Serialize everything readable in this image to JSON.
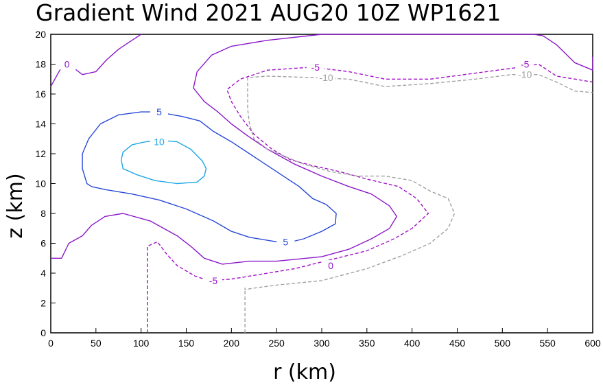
{
  "chart_data": {
    "type": "contour",
    "title": "Gradient Wind 2021 AUG20 10Z  WP1621",
    "xlabel": "r (km)",
    "ylabel": "z (km)",
    "xlim": [
      0,
      600
    ],
    "ylim": [
      0,
      20
    ],
    "x_ticks": [
      0,
      50,
      100,
      150,
      200,
      250,
      300,
      350,
      400,
      450,
      500,
      550,
      600
    ],
    "y_ticks": [
      0,
      2,
      4,
      6,
      8,
      10,
      12,
      14,
      16,
      18,
      20
    ],
    "grid": false,
    "colors": {
      "level_10": "#1ea7e6",
      "level_5": "#2848d8",
      "level_0": "#8a18c8",
      "level_neg5": "#a010c8",
      "level_neg10": "#a0a0a0"
    },
    "contours": [
      {
        "level": 10,
        "label": "10",
        "style": "solid",
        "color": "#1ea7e6",
        "label_at": [
          120,
          12.8
        ],
        "points": [
          [
            78,
            11.6
          ],
          [
            80,
            12.1
          ],
          [
            90,
            12.6
          ],
          [
            105,
            12.8
          ],
          [
            120,
            12.9
          ],
          [
            140,
            12.8
          ],
          [
            155,
            12.3
          ],
          [
            168,
            11.5
          ],
          [
            172,
            11.0
          ],
          [
            170,
            10.5
          ],
          [
            162,
            10.1
          ],
          [
            140,
            10.0
          ],
          [
            115,
            10.2
          ],
          [
            95,
            10.6
          ],
          [
            80,
            11.0
          ],
          [
            78,
            11.6
          ]
        ]
      },
      {
        "level": 5,
        "label": "5",
        "style": "solid",
        "color": "#2848d8",
        "label_at": [
          120,
          14.8
        ],
        "label2_at": [
          260,
          6.1
        ],
        "points": [
          [
            40,
            10.0
          ],
          [
            35,
            11.0
          ],
          [
            35,
            12.0
          ],
          [
            42,
            13.0
          ],
          [
            55,
            14.0
          ],
          [
            75,
            14.6
          ],
          [
            100,
            14.8
          ],
          [
            118,
            14.8
          ],
          [
            145,
            14.5
          ],
          [
            165,
            14.2
          ],
          [
            180,
            13.5
          ],
          [
            200,
            12.8
          ],
          [
            220,
            12.0
          ],
          [
            250,
            10.8
          ],
          [
            275,
            9.8
          ],
          [
            290,
            9.0
          ],
          [
            305,
            8.6
          ],
          [
            316,
            8.0
          ],
          [
            315,
            7.3
          ],
          [
            300,
            6.8
          ],
          [
            280,
            6.3
          ],
          [
            260,
            6.0
          ],
          [
            220,
            6.4
          ],
          [
            200,
            6.8
          ],
          [
            180,
            7.5
          ],
          [
            150,
            8.3
          ],
          [
            120,
            8.9
          ],
          [
            90,
            9.3
          ],
          [
            60,
            9.6
          ],
          [
            45,
            9.8
          ],
          [
            40,
            10.0
          ]
        ]
      },
      {
        "level": 0,
        "label": "0",
        "style": "solid",
        "color": "#8a18c8",
        "label_at": [
          310,
          4.5
        ],
        "points": [
          [
            0,
            5.0
          ],
          [
            12,
            5.0
          ],
          [
            20,
            6.0
          ],
          [
            35,
            6.5
          ],
          [
            45,
            7.2
          ],
          [
            60,
            7.8
          ],
          [
            80,
            8.0
          ],
          [
            110,
            7.5
          ],
          [
            140,
            6.5
          ],
          [
            155,
            5.8
          ],
          [
            170,
            5.0
          ],
          [
            190,
            4.6
          ],
          [
            220,
            4.8
          ],
          [
            250,
            4.8
          ],
          [
            300,
            5.1
          ],
          [
            330,
            5.6
          ],
          [
            355,
            6.3
          ],
          [
            375,
            7.0
          ],
          [
            383,
            7.8
          ],
          [
            375,
            8.5
          ],
          [
            355,
            9.3
          ],
          [
            330,
            9.8
          ],
          [
            300,
            10.5
          ],
          [
            270,
            11.3
          ],
          [
            240,
            12.3
          ],
          [
            218,
            13.2
          ],
          [
            200,
            14.0
          ],
          [
            185,
            14.8
          ],
          [
            170,
            15.5
          ],
          [
            158,
            16.4
          ],
          [
            162,
            17.5
          ],
          [
            178,
            18.6
          ],
          [
            200,
            19.2
          ],
          [
            240,
            19.6
          ],
          [
            300,
            20.0
          ],
          [
            360,
            20.0
          ],
          [
            420,
            20.0
          ],
          [
            480,
            20.0
          ],
          [
            535,
            20.0
          ],
          [
            545,
            19.9
          ],
          [
            560,
            19.3
          ],
          [
            580,
            18.1
          ],
          [
            600,
            17.6
          ],
          [
            600,
            18.5
          ]
        ]
      },
      {
        "level": 0,
        "label": "0",
        "style": "solid",
        "color": "#8a18c8",
        "label_at": [
          18,
          18.0
        ],
        "points": [
          [
            0,
            16.5
          ],
          [
            10,
            17.6
          ],
          [
            20,
            18.0
          ],
          [
            35,
            17.3
          ],
          [
            50,
            17.5
          ],
          [
            62,
            18.3
          ],
          [
            75,
            19.0
          ],
          [
            90,
            19.6
          ],
          [
            100,
            20.0
          ]
        ]
      },
      {
        "level": -5,
        "label": "-5",
        "style": "dashed",
        "color": "#a010c8",
        "label_at": [
          180,
          3.5
        ],
        "label2_at": [
          293,
          17.8
        ],
        "label3_at": [
          525,
          18.0
        ],
        "points": [
          [
            107,
            0
          ],
          [
            107,
            3.0
          ],
          [
            107,
            5.8
          ],
          [
            118,
            6.1
          ],
          [
            128,
            5.3
          ],
          [
            140,
            4.5
          ],
          [
            160,
            3.8
          ],
          [
            175,
            3.5
          ],
          [
            200,
            3.6
          ],
          [
            230,
            3.9
          ],
          [
            270,
            4.3
          ],
          [
            310,
            4.9
          ],
          [
            350,
            5.5
          ],
          [
            380,
            6.3
          ],
          [
            400,
            7.0
          ],
          [
            418,
            8.0
          ],
          [
            405,
            9.0
          ],
          [
            385,
            9.8
          ],
          [
            350,
            10.3
          ],
          [
            320,
            10.8
          ],
          [
            290,
            11.2
          ],
          [
            265,
            11.6
          ],
          [
            245,
            12.3
          ],
          [
            225,
            13.3
          ],
          [
            210,
            14.5
          ],
          [
            200,
            15.5
          ],
          [
            195,
            16.3
          ],
          [
            210,
            17.0
          ],
          [
            240,
            17.6
          ],
          [
            290,
            17.8
          ],
          [
            330,
            17.5
          ],
          [
            370,
            17.0
          ],
          [
            420,
            17.0
          ],
          [
            470,
            17.4
          ],
          [
            520,
            17.8
          ],
          [
            540,
            18.0
          ],
          [
            560,
            17.2
          ],
          [
            600,
            16.8
          ]
        ]
      },
      {
        "level": -10,
        "label": "-10",
        "style": "dashed",
        "color": "#a0a0a0",
        "label_at": [
          305,
          17.1
        ],
        "label2_at": [
          525,
          17.3
        ],
        "points": [
          [
            215,
            0
          ],
          [
            215,
            3.0
          ],
          [
            215,
            2.9
          ],
          [
            225,
            3.0
          ],
          [
            250,
            3.2
          ],
          [
            300,
            3.5
          ],
          [
            350,
            4.3
          ],
          [
            390,
            5.2
          ],
          [
            420,
            6.0
          ],
          [
            440,
            7.0
          ],
          [
            447,
            8.0
          ],
          [
            440,
            9.0
          ],
          [
            420,
            9.5
          ],
          [
            400,
            10.2
          ],
          [
            370,
            10.5
          ],
          [
            340,
            10.5
          ],
          [
            310,
            10.8
          ],
          [
            280,
            11.3
          ],
          [
            260,
            11.8
          ],
          [
            240,
            12.3
          ],
          [
            225,
            13.0
          ],
          [
            220,
            14.0
          ],
          [
            218,
            15.0
          ],
          [
            218,
            17.1
          ],
          [
            240,
            17.2
          ],
          [
            290,
            17.1
          ],
          [
            330,
            17.0
          ],
          [
            370,
            16.5
          ],
          [
            420,
            16.7
          ],
          [
            470,
            17.0
          ],
          [
            510,
            17.3
          ],
          [
            540,
            17.3
          ],
          [
            560,
            16.8
          ],
          [
            580,
            16.2
          ],
          [
            600,
            16.1
          ]
        ]
      }
    ]
  }
}
